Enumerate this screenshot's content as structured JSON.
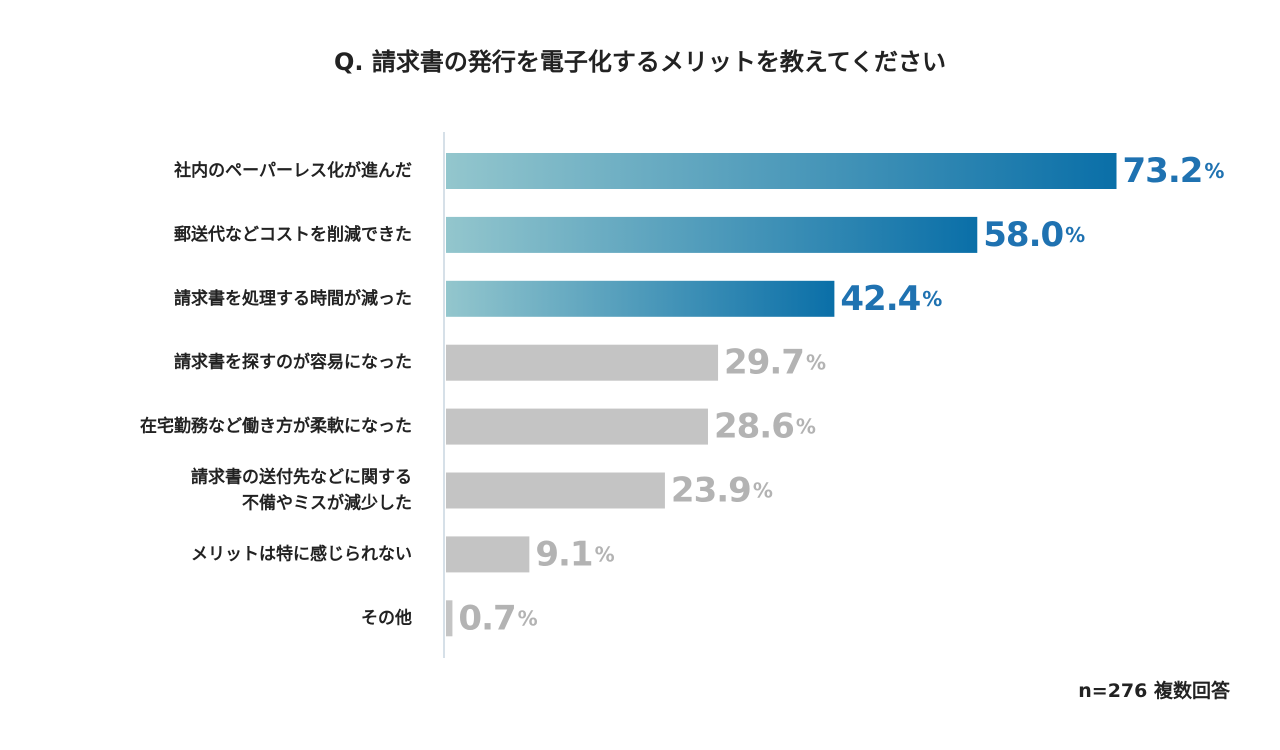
{
  "chart_data": {
    "type": "bar",
    "orientation": "horizontal",
    "title": "Q. 請求書の発行を電子化するメリットを教えてください",
    "categories": [
      [
        "社内のペーパーレス化が進んだ"
      ],
      [
        "郵送代などコストを削減できた"
      ],
      [
        "請求書を処理する時間が減った"
      ],
      [
        "請求書を探すのが容易になった"
      ],
      [
        "在宅勤務など働き方が柔軟になった"
      ],
      [
        "請求書の送付先などに関する",
        "不備やミスが減少した"
      ],
      [
        "メリットは特に感じられない"
      ],
      [
        "その他"
      ]
    ],
    "values": [
      73.2,
      58.0,
      42.4,
      29.7,
      28.6,
      23.9,
      9.1,
      0.7
    ],
    "value_labels": [
      "73.2",
      "58.0",
      "42.4",
      "29.7",
      "28.6",
      "23.9",
      "9.1",
      "0.7"
    ],
    "unit": "%",
    "highlighted_count": 3,
    "xlim": [
      0,
      100
    ],
    "grid": false,
    "legend": "none",
    "note": "n=276 複数回答"
  },
  "colors": {
    "highlight_start": "#93c6cd",
    "highlight_end": "#0a6fa8",
    "highlight_text": "#1f72b1",
    "normal_bar": "#c4c4c4",
    "normal_text": "#b3b3b3",
    "axis": "#c8d6e0"
  }
}
